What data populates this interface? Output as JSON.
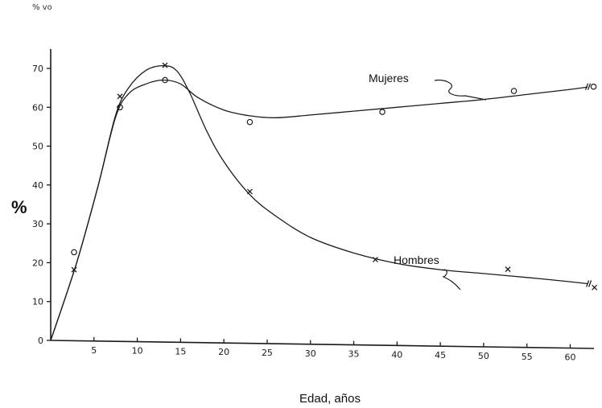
{
  "corner_fragment": "% vo",
  "chart_data": {
    "type": "line",
    "xlabel": "Edad, años",
    "ylabel": "%",
    "xlim": [
      0,
      62
    ],
    "ylim": [
      0,
      75
    ],
    "x_ticks": [
      5,
      10,
      15,
      20,
      25,
      30,
      35,
      40,
      45,
      50,
      55,
      60
    ],
    "y_ticks": [
      0,
      10,
      20,
      30,
      40,
      50,
      60,
      70
    ],
    "grid": false,
    "series": [
      {
        "name": "Mujeres",
        "marker": "o",
        "points": [
          [
            2.7,
            22.7
          ],
          [
            8,
            60
          ],
          [
            13.2,
            67
          ],
          [
            23,
            56.2
          ],
          [
            38.3,
            58.8
          ],
          [
            53.5,
            64.2
          ],
          [
            62.7,
            65.3
          ]
        ],
        "curve": [
          [
            0,
            0
          ],
          [
            3,
            20
          ],
          [
            5.5,
            40
          ],
          [
            7.5,
            57.5
          ],
          [
            9,
            63.5
          ],
          [
            11,
            66
          ],
          [
            13,
            67
          ],
          [
            15,
            66
          ],
          [
            17,
            62.5
          ],
          [
            20,
            59.3
          ],
          [
            23,
            57.8
          ],
          [
            26,
            57.3
          ],
          [
            30,
            58
          ],
          [
            35,
            59
          ],
          [
            40,
            60
          ],
          [
            45,
            61
          ],
          [
            50,
            62
          ],
          [
            55,
            63.3
          ],
          [
            60,
            64.6
          ],
          [
            62,
            65.2
          ]
        ]
      },
      {
        "name": "Hombres",
        "marker": "x",
        "points": [
          [
            2.7,
            18.2
          ],
          [
            8,
            62.8
          ],
          [
            13.2,
            70.8
          ],
          [
            23,
            38.3
          ],
          [
            37.5,
            20.8
          ],
          [
            52.8,
            18.3
          ],
          [
            62.8,
            13.6
          ]
        ],
        "curve": [
          [
            0,
            0
          ],
          [
            3,
            20
          ],
          [
            5.5,
            40
          ],
          [
            7.5,
            58
          ],
          [
            9,
            65
          ],
          [
            11,
            69.5
          ],
          [
            13,
            70.7
          ],
          [
            14.5,
            69.5
          ],
          [
            16,
            64
          ],
          [
            18,
            54
          ],
          [
            20,
            46
          ],
          [
            23,
            37.5
          ],
          [
            26,
            32
          ],
          [
            30,
            26.5
          ],
          [
            35,
            22.5
          ],
          [
            40,
            19.8
          ],
          [
            45,
            18.2
          ],
          [
            50,
            17.2
          ],
          [
            55,
            16.2
          ],
          [
            60,
            15.1
          ],
          [
            62,
            14.6
          ]
        ]
      }
    ]
  }
}
